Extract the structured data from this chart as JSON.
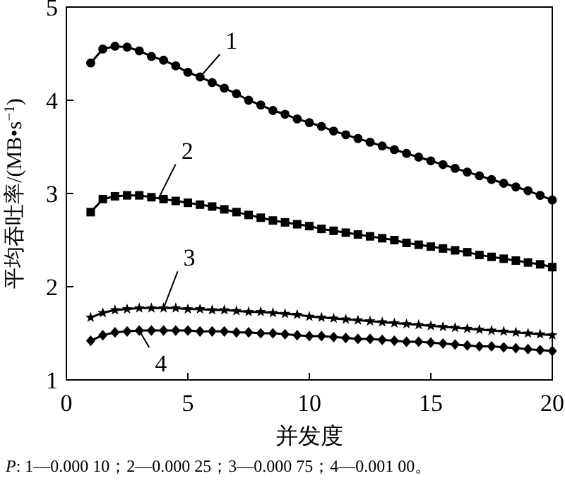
{
  "chart_data": {
    "type": "line",
    "xlabel": "并发度",
    "ylabel": "平均吞吐率/(MB•s$^{−1}$)",
    "x": [
      1,
      1.5,
      2,
      2.5,
      3,
      3.5,
      4,
      4.5,
      5,
      5.5,
      6,
      6.5,
      7,
      7.5,
      8,
      8.5,
      9,
      9.5,
      10,
      10.5,
      11,
      11.5,
      12,
      12.5,
      13,
      13.5,
      14,
      14.5,
      15,
      15.5,
      16,
      16.5,
      17,
      17.5,
      18,
      18.5,
      19,
      19.5,
      20
    ],
    "series": [
      {
        "color": "#000000",
        "marker": "circle",
        "values": [
          4.4,
          4.55,
          4.58,
          4.57,
          4.53,
          4.47,
          4.43,
          4.37,
          4.3,
          4.25,
          4.19,
          4.13,
          4.07,
          4.0,
          3.95,
          3.89,
          3.85,
          3.8,
          3.76,
          3.72,
          3.67,
          3.63,
          3.59,
          3.55,
          3.51,
          3.47,
          3.43,
          3.39,
          3.35,
          3.31,
          3.27,
          3.23,
          3.19,
          3.15,
          3.11,
          3.07,
          3.03,
          2.98,
          2.93
        ]
      },
      {
        "color": "#000000",
        "marker": "square",
        "values": [
          2.8,
          2.94,
          2.97,
          2.98,
          2.98,
          2.96,
          2.94,
          2.92,
          2.9,
          2.88,
          2.86,
          2.83,
          2.8,
          2.77,
          2.74,
          2.71,
          2.69,
          2.67,
          2.65,
          2.62,
          2.6,
          2.58,
          2.56,
          2.54,
          2.52,
          2.5,
          2.47,
          2.45,
          2.43,
          2.41,
          2.39,
          2.37,
          2.34,
          2.32,
          2.3,
          2.28,
          2.26,
          2.24,
          2.21
        ]
      },
      {
        "color": "#000000",
        "marker": "star",
        "values": [
          1.67,
          1.72,
          1.75,
          1.76,
          1.77,
          1.77,
          1.77,
          1.77,
          1.76,
          1.76,
          1.75,
          1.75,
          1.74,
          1.73,
          1.73,
          1.72,
          1.71,
          1.7,
          1.68,
          1.67,
          1.66,
          1.65,
          1.64,
          1.63,
          1.62,
          1.61,
          1.6,
          1.59,
          1.58,
          1.57,
          1.56,
          1.55,
          1.54,
          1.53,
          1.52,
          1.51,
          1.5,
          1.49,
          1.48
        ]
      },
      {
        "color": "#000000",
        "marker": "diamond",
        "values": [
          1.42,
          1.48,
          1.51,
          1.52,
          1.53,
          1.53,
          1.53,
          1.53,
          1.53,
          1.52,
          1.52,
          1.52,
          1.51,
          1.51,
          1.5,
          1.5,
          1.49,
          1.48,
          1.47,
          1.47,
          1.46,
          1.45,
          1.44,
          1.44,
          1.43,
          1.42,
          1.41,
          1.41,
          1.4,
          1.39,
          1.38,
          1.37,
          1.36,
          1.36,
          1.35,
          1.34,
          1.33,
          1.32,
          1.31
        ]
      }
    ],
    "annotations": [
      {
        "text": "1",
        "x": 5.5,
        "y": 4.25
      },
      {
        "text": "2",
        "x": 3.8,
        "y": 2.95
      },
      {
        "text": "3",
        "x": 4,
        "y": 1.77
      },
      {
        "text": "4",
        "x": 3,
        "y": 1.53
      },
      "P: 1—0.000 10；2—0.000 25；3—0.000 75；4—0.001 00。"
    ],
    "xlim": [
      0,
      20
    ],
    "xticks": [
      0,
      5,
      10,
      15,
      20
    ],
    "ylim": [
      1,
      5
    ],
    "yticks": [
      1,
      2,
      3,
      4,
      5
    ],
    "grid": false,
    "line_style": "solid"
  }
}
